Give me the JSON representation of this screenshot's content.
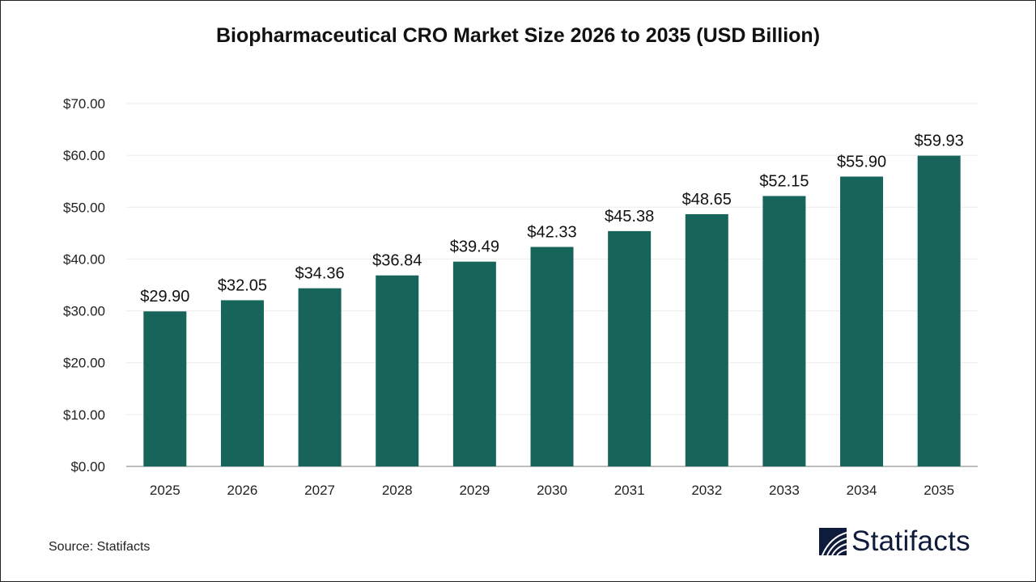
{
  "chart_data": {
    "type": "bar",
    "title": "Biopharmaceutical CRO Market Size 2026 to 2035 (USD Billion)",
    "categories": [
      "2025",
      "2026",
      "2027",
      "2028",
      "2029",
      "2030",
      "2031",
      "2032",
      "2033",
      "2034",
      "2035"
    ],
    "values": [
      29.9,
      32.05,
      34.36,
      36.84,
      39.49,
      42.33,
      45.38,
      48.65,
      52.15,
      55.9,
      59.93
    ],
    "data_labels": [
      "$29.90",
      "$32.05",
      "$34.36",
      "$36.84",
      "$39.49",
      "$42.33",
      "$45.38",
      "$48.65",
      "$52.15",
      "$55.90",
      "$59.93"
    ],
    "yticks": [
      "$0.00",
      "$10.00",
      "$20.00",
      "$30.00",
      "$40.00",
      "$50.00",
      "$60.00",
      "$70.00"
    ],
    "ylim": [
      0,
      70
    ],
    "xlabel": "",
    "ylabel": "",
    "grid": true,
    "bar_color": "#17645a"
  },
  "source": "Source: Statifacts",
  "logo": {
    "text": "Statifacts",
    "color": "#0f1b3a"
  }
}
